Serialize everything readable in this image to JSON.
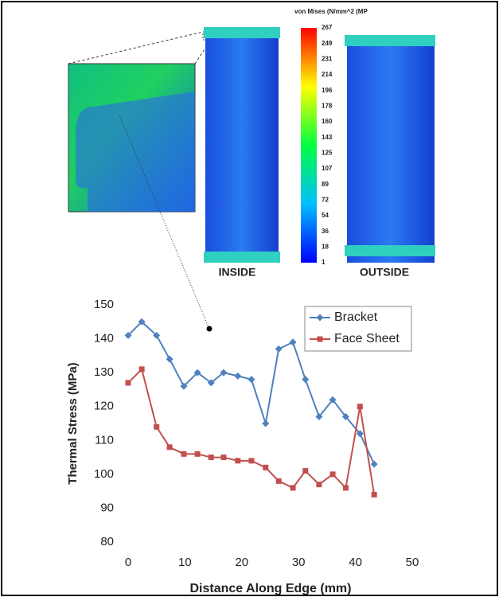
{
  "colorbar": {
    "title": "von Mises (N/mm^2 (MP",
    "labels": [
      "267",
      "249",
      "231",
      "214",
      "196",
      "178",
      "160",
      "143",
      "125",
      "107",
      "89",
      "72",
      "54",
      "36",
      "18",
      "1"
    ]
  },
  "panels": [
    "INSIDE",
    "OUTSIDE"
  ],
  "chart_data": {
    "type": "line",
    "xlabel": "Distance Along Edge (mm)",
    "ylabel": "Thermal Stress (MPa)",
    "x": [
      0,
      2.4,
      5.0,
      7.3,
      9.8,
      12.2,
      14.6,
      16.8,
      19.3,
      21.7,
      24.2,
      26.5,
      29.0,
      31.2,
      33.6,
      36.0,
      38.3,
      40.8,
      43.3
    ],
    "series": [
      {
        "name": "Bracket",
        "color": "#4f81bd",
        "marker": "diamond",
        "values": [
          141,
          145,
          141,
          134,
          126,
          130,
          127,
          130,
          129,
          128,
          115,
          137,
          139,
          128,
          117,
          122,
          117,
          112,
          103
        ]
      },
      {
        "name": "Face Sheet",
        "color": "#c0504d",
        "marker": "square",
        "values": [
          127,
          131,
          114,
          108,
          106,
          106,
          105,
          105,
          104,
          104,
          102,
          98,
          96,
          101,
          97,
          100,
          96,
          120,
          94
        ]
      }
    ],
    "xlim": [
      0,
      50
    ],
    "xticks": [
      0,
      10,
      20,
      30,
      40,
      50
    ],
    "ylim": [
      80,
      150
    ],
    "yticks": [
      80,
      90,
      100,
      110,
      120,
      130,
      140,
      150
    ],
    "grid": false,
    "legend": "upper right"
  }
}
